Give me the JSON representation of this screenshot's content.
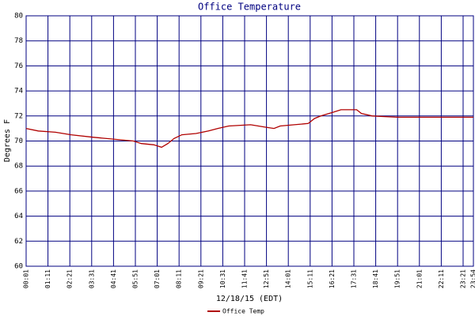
{
  "chart_data": {
    "type": "line",
    "title": "Office Temperature",
    "x_label": "12/18/15 (EDT)",
    "y_label": "Degrees F",
    "x": [
      "00:01",
      "00:40",
      "01:35",
      "02:25",
      "03:35",
      "05:00",
      "05:45",
      "06:10",
      "06:50",
      "07:15",
      "07:35",
      "07:55",
      "08:20",
      "09:05",
      "09:45",
      "10:15",
      "10:50",
      "12:00",
      "12:50",
      "13:15",
      "13:35",
      "14:20",
      "15:05",
      "15:25",
      "15:45",
      "16:25",
      "16:50",
      "17:40",
      "17:55",
      "18:30",
      "19:50",
      "20:30",
      "22:00",
      "23:00",
      "23:54"
    ],
    "series": [
      {
        "name": "Office Temp",
        "color": "#b00000",
        "values": [
          71.0,
          70.8,
          70.7,
          70.5,
          70.3,
          70.1,
          70.0,
          69.8,
          69.7,
          69.5,
          69.8,
          70.2,
          70.5,
          70.6,
          70.8,
          71.0,
          71.2,
          71.3,
          71.1,
          71.0,
          71.2,
          71.3,
          71.4,
          71.8,
          72.0,
          72.3,
          72.5,
          72.5,
          72.2,
          72.0,
          71.9,
          71.9,
          71.9,
          71.9,
          71.9
        ]
      }
    ],
    "xlim": [
      "00:01",
      "23:54"
    ],
    "xticks": [
      "00:01",
      "01:11",
      "02:21",
      "03:31",
      "04:41",
      "05:51",
      "07:01",
      "08:11",
      "09:21",
      "10:31",
      "11:41",
      "12:51",
      "14:01",
      "15:11",
      "16:21",
      "17:31",
      "18:41",
      "19:51",
      "21:01",
      "22:11",
      "23:21",
      "23:54"
    ],
    "ylim": [
      60,
      80
    ],
    "yticks": [
      60,
      62,
      64,
      66,
      68,
      70,
      72,
      74,
      76,
      78,
      80
    ],
    "grid": true
  }
}
